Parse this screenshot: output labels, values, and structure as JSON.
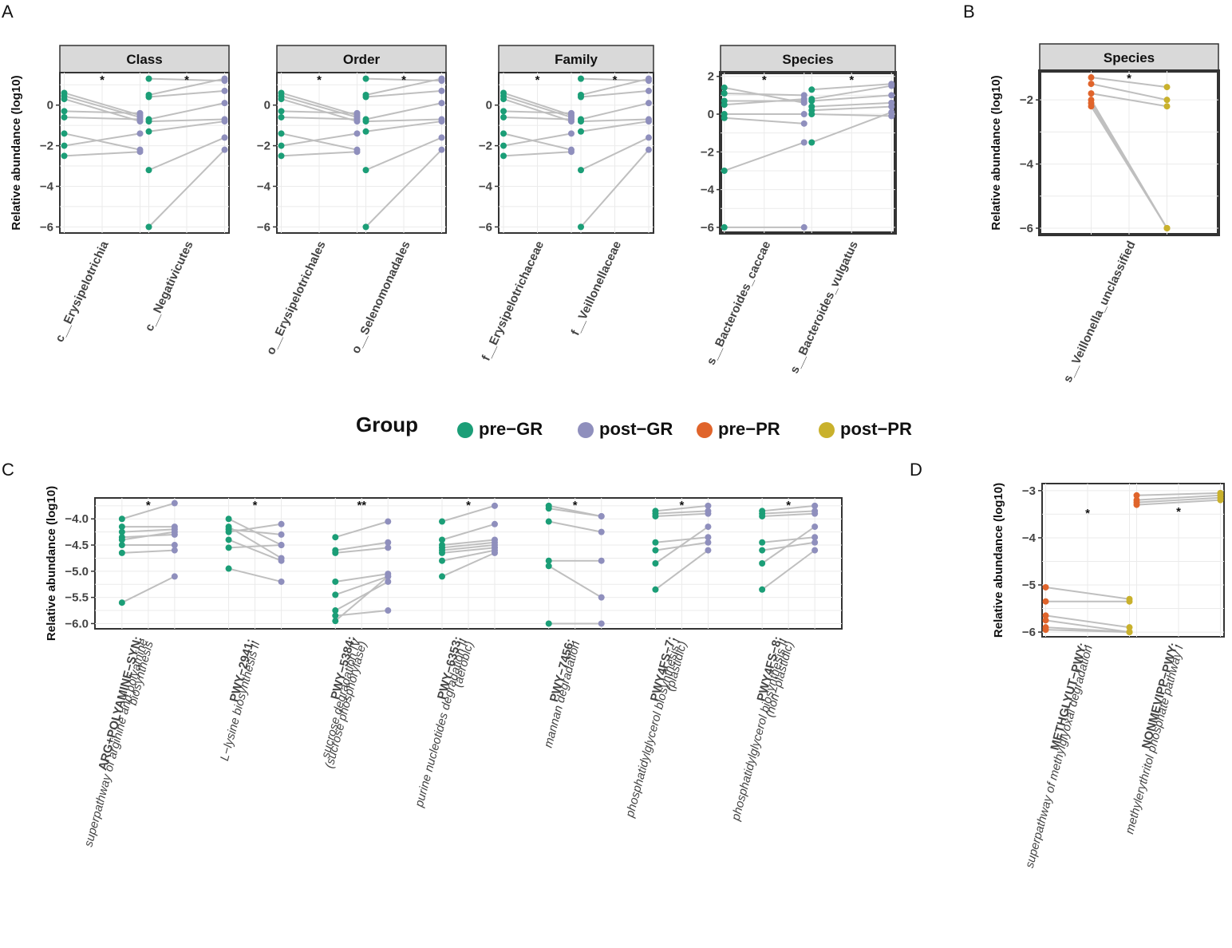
{
  "legend": {
    "title": "Group",
    "items": [
      {
        "label": "pre−GR",
        "color": "#1b9e77"
      },
      {
        "label": "post−GR",
        "color": "#8f8fbd"
      },
      {
        "label": "pre−PR",
        "color": "#e0642b"
      },
      {
        "label": "post−PR",
        "color": "#c9b12c"
      }
    ]
  },
  "chart_data": [
    {
      "panel": "A",
      "type": "scatter",
      "title": "Class",
      "ylabel": "Relative abundance (log10)",
      "ylim": [
        -6.3,
        1.6
      ],
      "yticks": [
        0,
        -2,
        -4,
        -6
      ],
      "groups": [
        "pre−GR",
        "post−GR"
      ],
      "categories": [
        {
          "label": "c__Erysipelotrichia",
          "sig": "*",
          "pairs": [
            [
              0.6,
              -0.5
            ],
            [
              0.45,
              -0.6
            ],
            [
              0.3,
              -0.8
            ],
            [
              -0.3,
              -0.4
            ],
            [
              -0.6,
              -0.7
            ],
            [
              -1.4,
              -2.2
            ],
            [
              -2.0,
              -1.4
            ],
            [
              -2.5,
              -2.3
            ]
          ]
        },
        {
          "label": "c__Negativicutes",
          "sig": "*",
          "pairs": [
            [
              1.3,
              1.2
            ],
            [
              0.5,
              1.3
            ],
            [
              0.4,
              0.7
            ],
            [
              -0.7,
              0.1
            ],
            [
              -0.8,
              -0.7
            ],
            [
              -1.3,
              -0.8
            ],
            [
              -3.2,
              -1.6
            ],
            [
              -6.0,
              -2.2
            ]
          ]
        }
      ]
    },
    {
      "panel": "A",
      "type": "scatter",
      "title": "Order",
      "ylabel": "",
      "ylim": [
        -6.3,
        1.6
      ],
      "yticks": [
        0,
        -2,
        -4,
        -6
      ],
      "groups": [
        "pre−GR",
        "post−GR"
      ],
      "categories": [
        {
          "label": "o__Erysipelotrichales",
          "sig": "*",
          "pairs": [
            [
              0.6,
              -0.5
            ],
            [
              0.45,
              -0.6
            ],
            [
              0.3,
              -0.8
            ],
            [
              -0.3,
              -0.4
            ],
            [
              -0.6,
              -0.7
            ],
            [
              -1.4,
              -2.2
            ],
            [
              -2.0,
              -1.4
            ],
            [
              -2.5,
              -2.3
            ]
          ]
        },
        {
          "label": "o__Selenomonadales",
          "sig": "*",
          "pairs": [
            [
              1.3,
              1.2
            ],
            [
              0.5,
              1.3
            ],
            [
              0.4,
              0.7
            ],
            [
              -0.7,
              0.1
            ],
            [
              -0.8,
              -0.7
            ],
            [
              -1.3,
              -0.8
            ],
            [
              -3.2,
              -1.6
            ],
            [
              -6.0,
              -2.2
            ]
          ]
        }
      ]
    },
    {
      "panel": "A",
      "type": "scatter",
      "title": "Family",
      "ylabel": "",
      "ylim": [
        -6.3,
        1.6
      ],
      "yticks": [
        0,
        -2,
        -4,
        -6
      ],
      "groups": [
        "pre−GR",
        "post−GR"
      ],
      "categories": [
        {
          "label": "f__Erysipelotrichaceae",
          "sig": "*",
          "pairs": [
            [
              0.6,
              -0.5
            ],
            [
              0.45,
              -0.6
            ],
            [
              0.3,
              -0.8
            ],
            [
              -0.3,
              -0.4
            ],
            [
              -0.6,
              -0.7
            ],
            [
              -1.4,
              -2.2
            ],
            [
              -2.0,
              -1.4
            ],
            [
              -2.5,
              -2.3
            ]
          ]
        },
        {
          "label": "f__Veillonellaceae",
          "sig": "*",
          "pairs": [
            [
              1.3,
              1.2
            ],
            [
              0.5,
              1.3
            ],
            [
              0.4,
              0.7
            ],
            [
              -0.7,
              0.1
            ],
            [
              -0.8,
              -0.7
            ],
            [
              -1.3,
              -0.8
            ],
            [
              -3.2,
              -1.6
            ],
            [
              -6.0,
              -2.2
            ]
          ]
        }
      ]
    },
    {
      "panel": "A",
      "type": "scatter",
      "title": "Species",
      "ylabel": "",
      "ylim": [
        -6.3,
        2.2
      ],
      "yticks": [
        2,
        0,
        -2,
        -4,
        -6
      ],
      "groups": [
        "pre−GR",
        "post−GR"
      ],
      "categories": [
        {
          "label": "s__Bacteroides_caccae",
          "sig": "*",
          "pairs": [
            [
              1.4,
              0.6
            ],
            [
              1.1,
              1.0
            ],
            [
              0.7,
              0.7
            ],
            [
              0.5,
              0.8
            ],
            [
              0.0,
              0.0
            ],
            [
              -0.2,
              -0.5
            ],
            [
              -3.0,
              -1.5
            ],
            [
              -6.0,
              -6.0
            ]
          ]
        },
        {
          "label": "s__Bacteroides_vulgatus",
          "sig": "*",
          "pairs": [
            [
              1.3,
              1.6
            ],
            [
              0.8,
              1.5
            ],
            [
              0.7,
              1.0
            ],
            [
              0.4,
              0.6
            ],
            [
              0.2,
              0.4
            ],
            [
              0.0,
              -0.1
            ],
            [
              -1.5,
              0.1
            ]
          ]
        }
      ]
    },
    {
      "panel": "B",
      "type": "scatter",
      "title": "Species",
      "ylabel": "Relative abundance (log10)",
      "ylim": [
        -6.2,
        -1.1
      ],
      "yticks": [
        -2,
        -4,
        -6
      ],
      "groups": [
        "pre−PR",
        "post−PR"
      ],
      "categories": [
        {
          "label": "s__Veillonella_unclassified",
          "sig": "*",
          "pairs": [
            [
              -1.3,
              -1.6
            ],
            [
              -1.5,
              -2.0
            ],
            [
              -1.8,
              -2.2
            ],
            [
              -2.0,
              -6.0
            ],
            [
              -2.1,
              -6.0
            ],
            [
              -2.2,
              -6.0
            ]
          ]
        }
      ]
    },
    {
      "panel": "C",
      "type": "scatter",
      "ylabel": "Relative abundance (log10)",
      "ylim": [
        -6.1,
        -3.6
      ],
      "yticks": [
        -4.0,
        -4.5,
        -5.0,
        -5.5,
        -6.0
      ],
      "groups": [
        "pre−GR",
        "post−GR"
      ],
      "categories": [
        {
          "label": [
            "ARG+POLYAMINE−SYN:",
            "superpathway of arginine and polyamine",
            "biosynthesis"
          ],
          "sig": "*",
          "pairs": [
            [
              -4.0,
              -3.7
            ],
            [
              -4.15,
              -4.15
            ],
            [
              -4.25,
              -4.2
            ],
            [
              -4.35,
              -4.3
            ],
            [
              -4.4,
              -4.25
            ],
            [
              -4.5,
              -4.5
            ],
            [
              -4.65,
              -4.6
            ],
            [
              -5.6,
              -5.1
            ]
          ]
        },
        {
          "label": [
            "PWY−2941:",
            "L−lysine biosynthesis II"
          ],
          "sig": "*",
          "pairs": [
            [
              -4.0,
              -4.5
            ],
            [
              -4.15,
              -4.75
            ],
            [
              -4.2,
              -4.3
            ],
            [
              -4.25,
              -4.1
            ],
            [
              -4.4,
              -4.8
            ],
            [
              -4.55,
              -4.5
            ],
            [
              -4.95,
              -5.2
            ]
          ]
        },
        {
          "label": [
            "PWY−5384:",
            "sucrose degradation IV",
            "(sucrose phosphorylase)"
          ],
          "sig": "**",
          "pairs": [
            [
              -4.35,
              -4.05
            ],
            [
              -4.6,
              -4.45
            ],
            [
              -4.65,
              -4.55
            ],
            [
              -5.2,
              -5.05
            ],
            [
              -5.45,
              -5.1
            ],
            [
              -5.75,
              -5.2
            ],
            [
              -5.85,
              -5.75
            ],
            [
              -5.95,
              -5.1
            ]
          ]
        },
        {
          "label": [
            "PWY−6353:",
            "purine nucleotides degradation II",
            "(aerobic)"
          ],
          "sig": "*",
          "pairs": [
            [
              -4.05,
              -3.75
            ],
            [
              -4.4,
              -4.1
            ],
            [
              -4.5,
              -4.4
            ],
            [
              -4.55,
              -4.45
            ],
            [
              -4.6,
              -4.5
            ],
            [
              -4.65,
              -4.55
            ],
            [
              -4.8,
              -4.6
            ],
            [
              -5.1,
              -4.65
            ]
          ]
        },
        {
          "label": [
            "PWY−7456:",
            "mannan degradation"
          ],
          "sig": "*",
          "pairs": [
            [
              -3.75,
              -3.95
            ],
            [
              -3.8,
              -3.95
            ],
            [
              -4.05,
              -4.25
            ],
            [
              -4.8,
              -4.8
            ],
            [
              -4.9,
              -5.5
            ],
            [
              -6.0,
              -6.0
            ]
          ]
        },
        {
          "label": [
            "PWY4FS−7:",
            "phosphatidylglycerol biosynthesis I",
            "(plastidic)"
          ],
          "sig": "*",
          "pairs": [
            [
              -3.85,
              -3.75
            ],
            [
              -3.9,
              -3.85
            ],
            [
              -3.95,
              -3.9
            ],
            [
              -4.45,
              -4.35
            ],
            [
              -4.6,
              -4.45
            ],
            [
              -4.85,
              -4.15
            ],
            [
              -5.35,
              -4.6
            ]
          ]
        },
        {
          "label": [
            "PWY4FS−8:",
            "phosphatidylglycerol biosynthesis II",
            "(non−plastidic)"
          ],
          "sig": "*",
          "pairs": [
            [
              -3.85,
              -3.75
            ],
            [
              -3.9,
              -3.85
            ],
            [
              -3.95,
              -3.9
            ],
            [
              -4.45,
              -4.35
            ],
            [
              -4.6,
              -4.45
            ],
            [
              -4.85,
              -4.15
            ],
            [
              -5.35,
              -4.6
            ]
          ]
        }
      ]
    },
    {
      "panel": "D",
      "type": "scatter",
      "ylabel": "Relative abundance (log10)",
      "ylim": [
        -6.1,
        -2.85
      ],
      "yticks": [
        -3,
        -4,
        -5,
        -6
      ],
      "groups": [
        "pre−PR",
        "post−PR"
      ],
      "categories": [
        {
          "label": [
            "METHGLYUT−PWY:",
            "superpathway of methylglyoxal degradation"
          ],
          "sig": "*",
          "pairs": [
            [
              -5.05,
              -5.3
            ],
            [
              -5.35,
              -5.35
            ],
            [
              -5.65,
              -5.9
            ],
            [
              -5.75,
              -6.0
            ],
            [
              -5.9,
              -6.0
            ],
            [
              -5.95,
              -6.0
            ]
          ]
        },
        {
          "label": [
            "NONMEVIPP−PWY:",
            "methylerythritol phosphate pathway I"
          ],
          "sig": "*",
          "pairs": [
            [
              -3.1,
              -3.05
            ],
            [
              -3.2,
              -3.1
            ],
            [
              -3.25,
              -3.15
            ],
            [
              -3.3,
              -3.2
            ]
          ]
        }
      ]
    }
  ]
}
